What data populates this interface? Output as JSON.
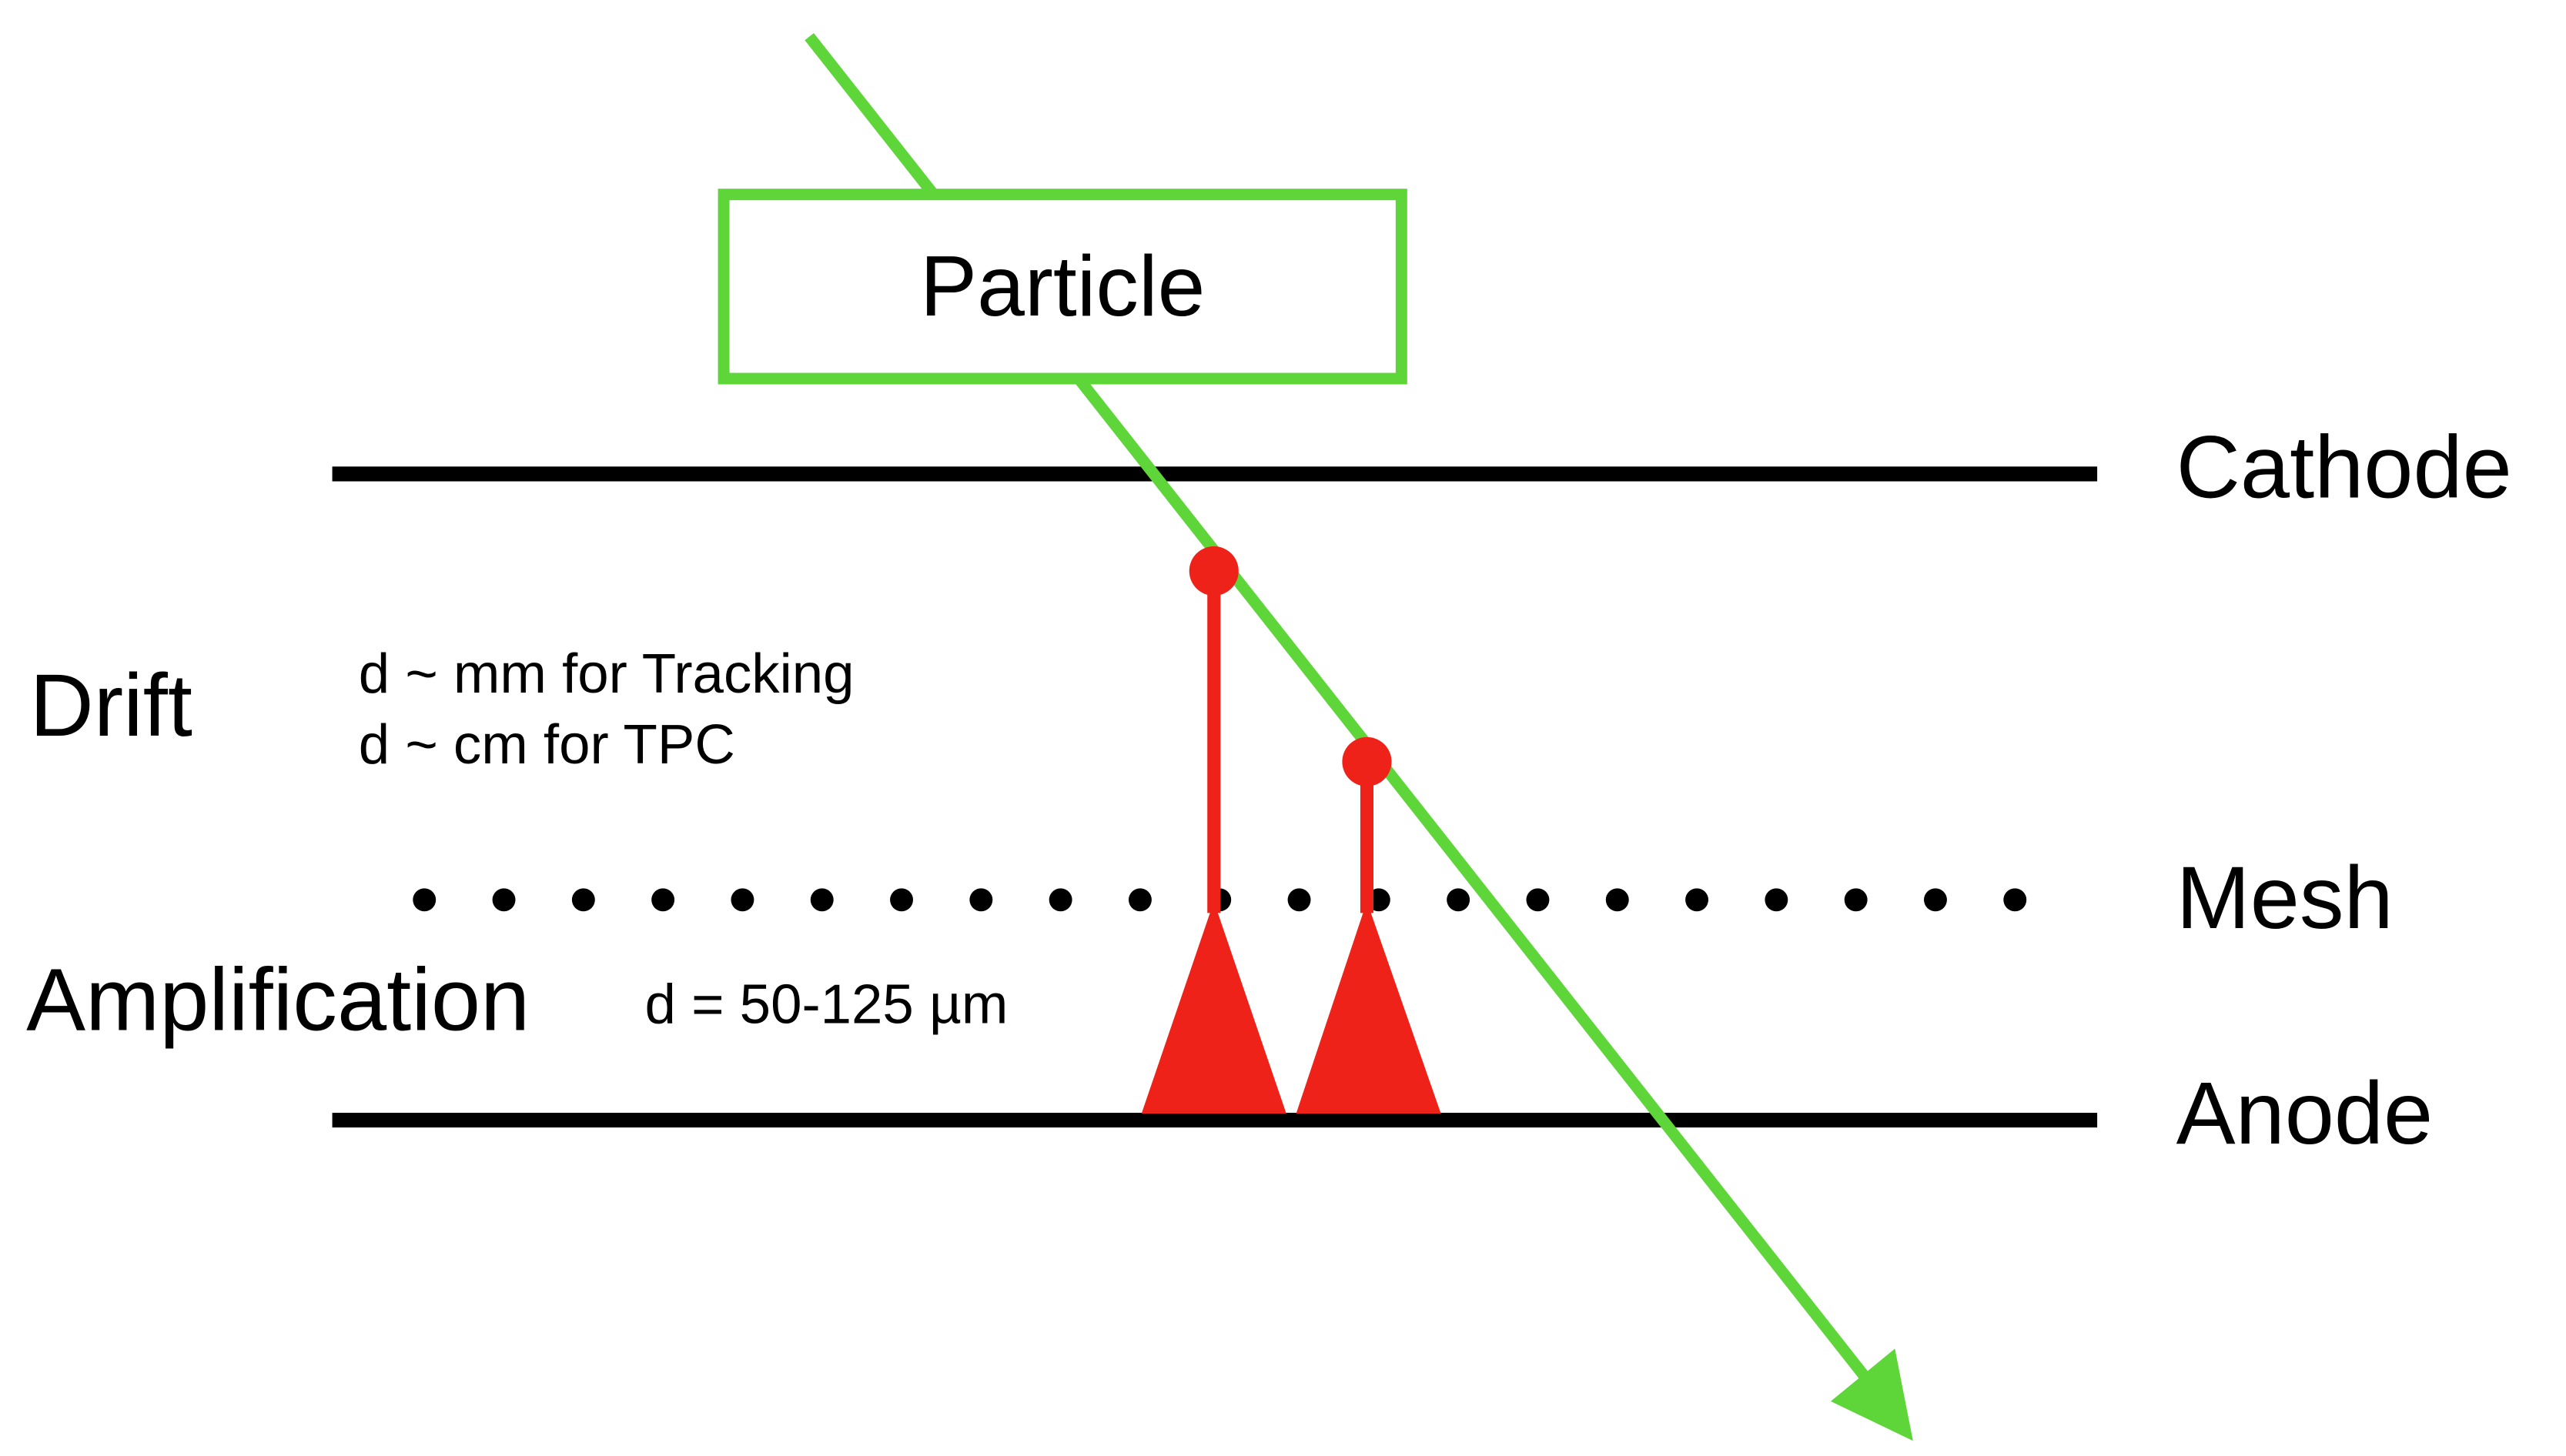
{
  "particle_label": "Particle",
  "electrodes": {
    "cathode": "Cathode",
    "mesh": "Mesh",
    "anode": "Anode"
  },
  "regions": {
    "drift": {
      "label": "Drift",
      "notes": [
        "d ~ mm for Tracking",
        "d ~ cm for TPC"
      ]
    },
    "amplification": {
      "label": "Amplification",
      "note": "d = 50-125 µm"
    }
  }
}
